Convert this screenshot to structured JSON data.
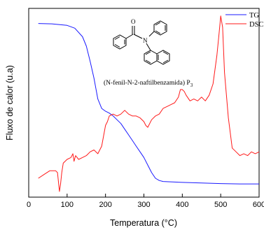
{
  "chart_data": {
    "type": "line",
    "xlabel": "Temperatura (°C)",
    "ylabel": "Fluxo de calor (u.a)",
    "xlim": [
      0,
      600
    ],
    "ylim": [
      0,
      100
    ],
    "xticks": [
      0,
      100,
      200,
      300,
      400,
      500,
      600
    ],
    "grid": false,
    "legend_position": "top-right",
    "annotation": {
      "compound": "(N-fenil-N-2-naftilbenzamida) P",
      "subscript": "3",
      "atom_o": "O",
      "atom_n": "N"
    },
    "series": [
      {
        "name": "TG",
        "color": "#1a1aff",
        "x": [
          25,
          60,
          100,
          120,
          140,
          150,
          160,
          170,
          180,
          190,
          200,
          210,
          220,
          230,
          240,
          250,
          260,
          270,
          280,
          290,
          300,
          310,
          320,
          330,
          340,
          350,
          400,
          450,
          500,
          550,
          600
        ],
        "y": [
          92,
          91.8,
          91,
          89.5,
          85,
          80,
          72,
          63,
          52,
          47,
          45.5,
          44.5,
          43,
          41,
          39,
          36,
          33,
          30,
          27,
          24,
          21,
          17,
          13,
          10,
          8.8,
          8.3,
          7.8,
          7.5,
          7.2,
          7,
          7
        ]
      },
      {
        "name": "DSC",
        "color": "#ff1a1a",
        "x": [
          25,
          40,
          55,
          70,
          75,
          80,
          83,
          86,
          90,
          100,
          110,
          115,
          118,
          122,
          130,
          140,
          150,
          160,
          170,
          180,
          190,
          200,
          205,
          210,
          220,
          230,
          240,
          250,
          260,
          270,
          280,
          290,
          300,
          305,
          310,
          320,
          330,
          340,
          350,
          360,
          370,
          380,
          390,
          395,
          400,
          405,
          410,
          420,
          430,
          440,
          450,
          460,
          470,
          480,
          490,
          495,
          500,
          505,
          510,
          520,
          530,
          540,
          550,
          560,
          570,
          580,
          590,
          600
        ],
        "y": [
          10,
          12,
          14,
          14,
          13,
          3,
          7,
          13,
          18,
          20,
          21,
          23,
          19,
          22,
          20,
          21,
          22,
          24,
          25,
          23,
          27,
          38,
          40,
          43,
          44,
          43,
          44,
          46,
          44,
          43,
          43,
          42,
          40,
          38,
          37,
          41,
          43,
          44,
          47,
          48,
          49,
          50,
          53,
          57,
          57,
          56,
          54,
          51,
          52,
          51,
          53,
          51,
          54,
          60,
          75,
          85,
          96,
          90,
          66,
          42,
          26,
          24,
          22,
          23,
          22,
          24,
          23,
          24
        ]
      }
    ]
  }
}
